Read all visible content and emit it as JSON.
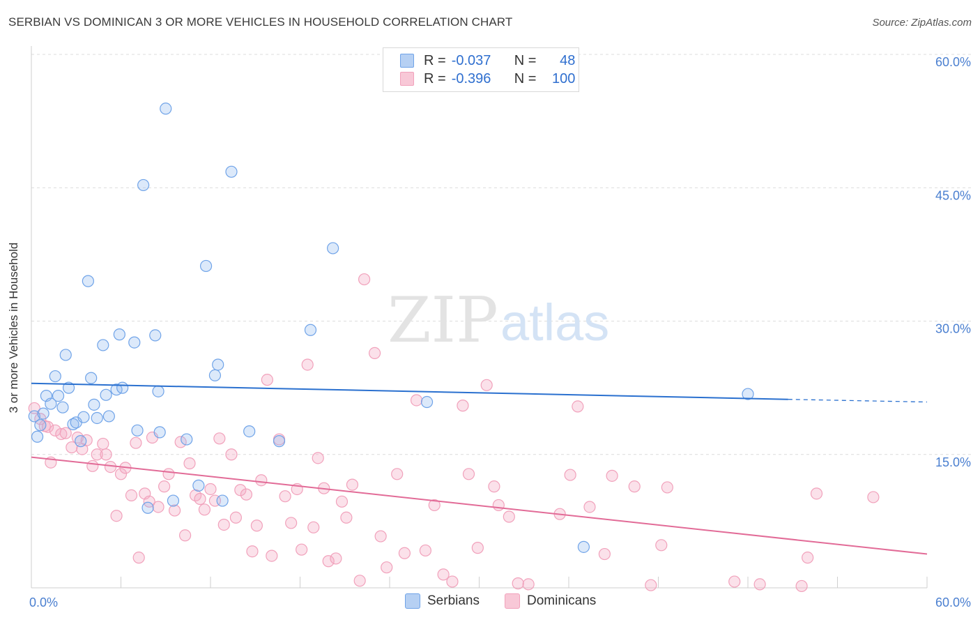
{
  "title": "SERBIAN VS DOMINICAN 3 OR MORE VEHICLES IN HOUSEHOLD CORRELATION CHART",
  "source": "Source: ZipAtlas.com",
  "watermark": {
    "zip": "ZIP",
    "atlas": "atlas"
  },
  "legend": {
    "r_label": "R =",
    "n_label": "N =",
    "rows": [
      {
        "r": "-0.037",
        "n": "48"
      },
      {
        "r": "-0.396",
        "n": "100"
      }
    ]
  },
  "chart_data": {
    "type": "scatter",
    "title": "SERBIAN VS DOMINICAN 3 OR MORE VEHICLES IN HOUSEHOLD CORRELATION CHART",
    "xlabel": "",
    "ylabel": "3 or more Vehicles in Household",
    "xlim": [
      0,
      60
    ],
    "ylim": [
      0,
      60
    ],
    "x_tick_labels": [
      "0.0%",
      "60.0%"
    ],
    "y_tick_labels": [
      "15.0%",
      "30.0%",
      "45.0%",
      "60.0%"
    ],
    "y_ticks": [
      15,
      30,
      45,
      60
    ],
    "grid": true,
    "legend_placement": "top-center",
    "colors": {
      "serbians": "#6fa3e8",
      "dominicans": "#f1a1bb",
      "serbians_line": "#2a70cf",
      "dominicans_line": "#e26b97",
      "axis_text": "#4a7fd0"
    },
    "series": [
      {
        "name": "Serbians",
        "r": -0.037,
        "n": 48,
        "trend": {
          "x": [
            0,
            50.7
          ],
          "y": [
            23.0,
            21.2
          ],
          "dashed_to": [
            60,
            20.9
          ]
        },
        "points": [
          [
            0.2,
            19.3
          ],
          [
            0.4,
            17.0
          ],
          [
            0.6,
            18.3
          ],
          [
            0.8,
            19.6
          ],
          [
            1.0,
            21.6
          ],
          [
            1.3,
            20.7
          ],
          [
            1.6,
            23.8
          ],
          [
            1.8,
            21.6
          ],
          [
            2.1,
            20.3
          ],
          [
            2.3,
            26.2
          ],
          [
            2.5,
            22.5
          ],
          [
            2.8,
            18.4
          ],
          [
            3.0,
            18.6
          ],
          [
            3.3,
            16.5
          ],
          [
            3.5,
            19.2
          ],
          [
            3.8,
            34.5
          ],
          [
            4.0,
            23.6
          ],
          [
            4.2,
            20.6
          ],
          [
            4.4,
            19.1
          ],
          [
            4.8,
            27.3
          ],
          [
            5.0,
            21.7
          ],
          [
            5.2,
            19.3
          ],
          [
            5.7,
            22.3
          ],
          [
            5.9,
            28.5
          ],
          [
            6.1,
            22.5
          ],
          [
            6.9,
            27.6
          ],
          [
            7.1,
            17.7
          ],
          [
            7.5,
            45.3
          ],
          [
            7.8,
            9.0
          ],
          [
            8.3,
            28.4
          ],
          [
            8.5,
            22.1
          ],
          [
            8.6,
            17.5
          ],
          [
            9.0,
            53.9
          ],
          [
            9.5,
            9.8
          ],
          [
            10.4,
            16.7
          ],
          [
            11.2,
            11.5
          ],
          [
            11.7,
            36.2
          ],
          [
            12.3,
            23.9
          ],
          [
            12.5,
            25.1
          ],
          [
            12.8,
            9.8
          ],
          [
            13.4,
            46.8
          ],
          [
            14.6,
            17.6
          ],
          [
            16.6,
            16.5
          ],
          [
            18.7,
            29.0
          ],
          [
            20.2,
            38.2
          ],
          [
            26.5,
            20.9
          ],
          [
            37.0,
            4.6
          ],
          [
            48.0,
            21.8
          ]
        ]
      },
      {
        "name": "Dominicans",
        "r": -0.396,
        "n": 100,
        "trend": {
          "x": [
            0,
            60
          ],
          "y": [
            14.7,
            3.8
          ]
        },
        "points": [
          [
            0.2,
            20.2
          ],
          [
            0.6,
            19.0
          ],
          [
            0.9,
            18.2
          ],
          [
            1.1,
            18.1
          ],
          [
            1.3,
            14.1
          ],
          [
            1.6,
            17.7
          ],
          [
            2.0,
            17.3
          ],
          [
            2.3,
            17.4
          ],
          [
            2.7,
            15.8
          ],
          [
            3.1,
            16.9
          ],
          [
            3.4,
            15.6
          ],
          [
            3.7,
            16.6
          ],
          [
            4.1,
            13.7
          ],
          [
            4.4,
            15.0
          ],
          [
            4.8,
            16.2
          ],
          [
            5.0,
            15.0
          ],
          [
            5.3,
            13.6
          ],
          [
            5.7,
            8.1
          ],
          [
            6.0,
            12.8
          ],
          [
            6.3,
            13.5
          ],
          [
            6.7,
            10.4
          ],
          [
            7.0,
            16.3
          ],
          [
            7.2,
            3.4
          ],
          [
            7.6,
            10.6
          ],
          [
            7.9,
            9.7
          ],
          [
            8.1,
            16.9
          ],
          [
            8.5,
            9.1
          ],
          [
            8.9,
            11.4
          ],
          [
            9.2,
            12.8
          ],
          [
            9.6,
            8.7
          ],
          [
            10.0,
            16.4
          ],
          [
            10.3,
            5.9
          ],
          [
            10.6,
            14.0
          ],
          [
            11.0,
            10.4
          ],
          [
            11.3,
            10.0
          ],
          [
            11.6,
            8.8
          ],
          [
            12.0,
            11.1
          ],
          [
            12.3,
            9.8
          ],
          [
            12.6,
            16.8
          ],
          [
            12.9,
            7.1
          ],
          [
            13.4,
            15.0
          ],
          [
            13.7,
            7.9
          ],
          [
            14.0,
            11.0
          ],
          [
            14.4,
            10.5
          ],
          [
            14.8,
            4.1
          ],
          [
            15.1,
            7.0
          ],
          [
            15.4,
            12.1
          ],
          [
            15.8,
            23.4
          ],
          [
            16.1,
            3.6
          ],
          [
            16.6,
            16.7
          ],
          [
            17.0,
            10.3
          ],
          [
            17.4,
            7.3
          ],
          [
            17.8,
            11.1
          ],
          [
            18.1,
            4.3
          ],
          [
            18.5,
            25.1
          ],
          [
            18.9,
            6.8
          ],
          [
            19.2,
            14.6
          ],
          [
            19.6,
            11.2
          ],
          [
            19.9,
            3.0
          ],
          [
            20.4,
            3.3
          ],
          [
            20.8,
            9.7
          ],
          [
            21.1,
            7.9
          ],
          [
            21.5,
            11.6
          ],
          [
            22.0,
            0.8
          ],
          [
            22.3,
            34.7
          ],
          [
            23.0,
            26.4
          ],
          [
            23.4,
            5.8
          ],
          [
            23.8,
            2.3
          ],
          [
            24.5,
            12.8
          ],
          [
            25.0,
            3.9
          ],
          [
            25.8,
            21.1
          ],
          [
            26.4,
            4.2
          ],
          [
            27.0,
            9.3
          ],
          [
            27.6,
            1.5
          ],
          [
            28.2,
            0.7
          ],
          [
            28.9,
            20.5
          ],
          [
            29.3,
            12.8
          ],
          [
            29.9,
            4.5
          ],
          [
            30.5,
            22.8
          ],
          [
            31.0,
            11.4
          ],
          [
            31.3,
            9.3
          ],
          [
            32.0,
            8.0
          ],
          [
            32.6,
            0.5
          ],
          [
            33.3,
            0.4
          ],
          [
            35.4,
            8.3
          ],
          [
            36.1,
            12.7
          ],
          [
            36.6,
            20.4
          ],
          [
            37.4,
            9.1
          ],
          [
            38.4,
            3.8
          ],
          [
            38.9,
            12.6
          ],
          [
            40.4,
            11.4
          ],
          [
            41.5,
            0.3
          ],
          [
            42.2,
            4.8
          ],
          [
            42.6,
            11.3
          ],
          [
            47.1,
            0.7
          ],
          [
            48.8,
            0.4
          ],
          [
            51.6,
            0.2
          ],
          [
            52.0,
            3.4
          ],
          [
            52.6,
            10.6
          ],
          [
            56.4,
            10.2
          ]
        ]
      }
    ]
  }
}
